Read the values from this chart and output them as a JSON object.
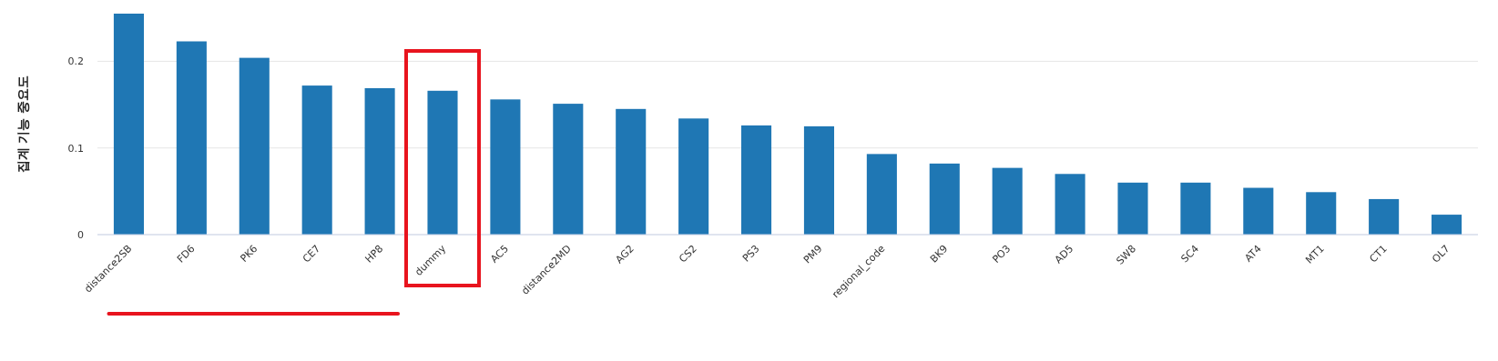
{
  "chart_data": {
    "type": "bar",
    "ylabel": "집계 기능 중요도",
    "categories": [
      "distance2SB",
      "FD6",
      "PK6",
      "CE7",
      "HP8",
      "dummy",
      "AC5",
      "distance2MD",
      "AG2",
      "CS2",
      "PS3",
      "PM9",
      "regional_code",
      "BK9",
      "PO3",
      "AD5",
      "SW8",
      "SC4",
      "AT4",
      "MT1",
      "CT1",
      "OL7"
    ],
    "values": [
      0.255,
      0.223,
      0.204,
      0.172,
      0.169,
      0.166,
      0.156,
      0.151,
      0.145,
      0.134,
      0.126,
      0.125,
      0.093,
      0.082,
      0.077,
      0.07,
      0.06,
      0.06,
      0.054,
      0.049,
      0.041,
      0.023
    ],
    "color": "#1f77b4",
    "ylim": [
      0,
      0.255
    ],
    "yticks": [
      0,
      0.1,
      0.2
    ],
    "grid": "y"
  }
}
